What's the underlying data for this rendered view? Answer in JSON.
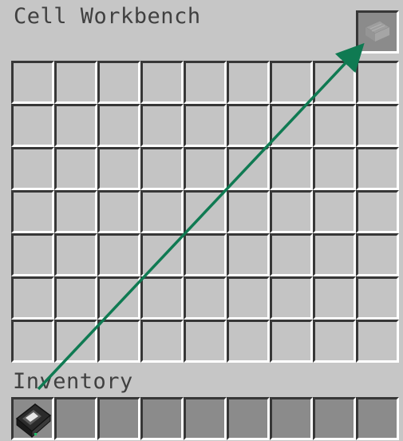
{
  "window": {
    "title": "Cell Workbench",
    "inventory_title": "Inventory"
  },
  "grid": {
    "rows": 7,
    "cols": 9
  },
  "hotbar": {
    "slots": 9,
    "items": [
      {
        "slot": 0,
        "icon": "storage-cell-icon"
      }
    ]
  },
  "cell_slot": {
    "icon": "cell-placeholder-icon"
  },
  "annotation": {
    "icon": "drag-arrow",
    "color": "#0f7a52"
  },
  "colors": {
    "background": "#c6c6c6",
    "title_text": "#404040",
    "slot_shadow": "#373737",
    "slot_highlight": "#ffffff",
    "slot_dark": "#8b8b8b"
  }
}
